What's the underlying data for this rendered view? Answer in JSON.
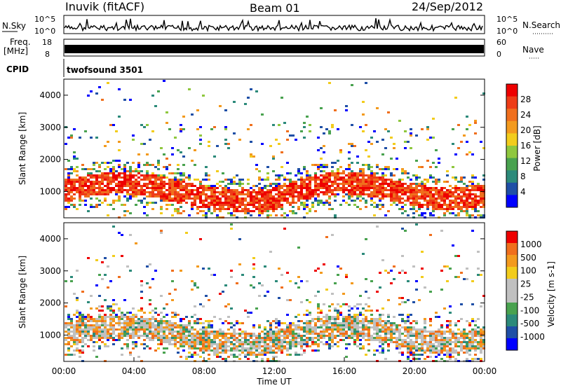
{
  "header": {
    "station": "Inuvik (fitACF)",
    "beam": "Beam 01",
    "date": "24/Sep/2012"
  },
  "noise_panel": {
    "left_label": "N.Sky",
    "right_label": "N.Search",
    "tick_top": "10^5",
    "tick_bottom": "10^0"
  },
  "freq_panel": {
    "left_label_1": "Freq.",
    "left_label_2": "[MHz]",
    "left_tick_top": "18",
    "left_tick_bottom": "8",
    "right_label": "Nave",
    "right_tick_top": "60",
    "right_tick_bottom": "0"
  },
  "cpid": {
    "label": "CPID",
    "value": "twofsound 3501"
  },
  "colors": {
    "power_scale": [
      "#0000ff",
      "#1f4fa6",
      "#2c8a7a",
      "#49a24f",
      "#8fc73e",
      "#f2cc1c",
      "#f39a1e",
      "#f06f1d",
      "#ee3c17",
      "#ee0000"
    ],
    "velocity_scale": [
      "#ee0000",
      "#f06f1d",
      "#f39a1e",
      "#f2cc1c",
      "#c0c0c0",
      "#c0c0c0",
      "#49a24f",
      "#2c8a7a",
      "#1f4fa6",
      "#0000ff"
    ]
  },
  "chart_data": [
    {
      "type": "heatmap",
      "name": "power",
      "ylabel": "Slant Range [km]",
      "xlim": [
        "00:00",
        "24:00"
      ],
      "ylim": [
        180,
        4500
      ],
      "y_ticks": [
        1000,
        2000,
        3000,
        4000
      ],
      "colorbar": {
        "label": "Power [dB]",
        "ticks": [
          "4",
          "8",
          "12",
          "16",
          "20",
          "24",
          "28"
        ],
        "range": [
          0,
          30
        ]
      }
    },
    {
      "type": "heatmap",
      "name": "velocity",
      "ylabel": "Slant Range [km]",
      "xlabel": "Time UT",
      "xlim": [
        "00:00",
        "24:00"
      ],
      "x_ticks": [
        "00:00",
        "04:00",
        "08:00",
        "12:00",
        "16:00",
        "20:00",
        "00:00"
      ],
      "ylim": [
        180,
        4500
      ],
      "y_ticks": [
        1000,
        2000,
        3000,
        4000
      ],
      "colorbar": {
        "label": "Velocity [m s-1]",
        "ticks": [
          "1000",
          "500",
          "100",
          "25",
          "-25",
          "-100",
          "-500",
          "-1000"
        ]
      }
    }
  ]
}
